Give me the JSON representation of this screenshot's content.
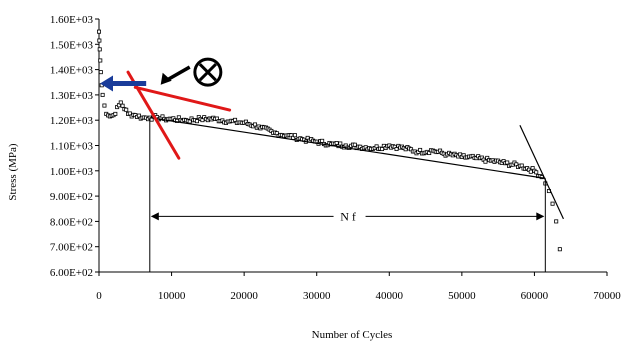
{
  "chart_data": {
    "type": "scatter",
    "xlabel": "Number of Cycles",
    "ylabel": "Stress (MPa)",
    "xlim": [
      0,
      70000
    ],
    "ylim": [
      600,
      1600
    ],
    "x_ticks": [
      0,
      10000,
      20000,
      30000,
      40000,
      50000,
      60000,
      70000
    ],
    "x_tick_labels": [
      "0",
      "10000",
      "20000",
      "30000",
      "40000",
      "50000",
      "60000",
      "70000"
    ],
    "y_ticks": [
      600,
      700,
      800,
      900,
      1000,
      1100,
      1200,
      1300,
      1400,
      1500,
      1600
    ],
    "y_tick_labels": [
      "6.00E+02",
      "7.00E+02",
      "8.00E+02",
      "9.00E+02",
      "1.00E+03",
      "1.10E+03",
      "1.20E+03",
      "1.30E+03",
      "1.40E+03",
      "1.50E+03",
      "1.60E+03"
    ],
    "grid": false,
    "series": [
      {
        "marker": "open-square",
        "color": "#000000",
        "x": [
          0,
          100,
          250,
          500,
          1000,
          1500,
          2000,
          3000,
          4000,
          5000,
          6000,
          7000,
          8000,
          9000,
          10000,
          12000,
          14000,
          16000,
          18000,
          20000,
          22000,
          24000,
          26000,
          28000,
          30000,
          32000,
          34000,
          36000,
          38000,
          40000,
          42000,
          44000,
          46000,
          48000,
          50000,
          52000,
          54000,
          56000,
          58000,
          60000,
          61000,
          61500,
          62000,
          62500,
          63000,
          63500
        ],
        "y": [
          1550,
          1480,
          1390,
          1300,
          1225,
          1215,
          1220,
          1270,
          1225,
          1220,
          1210,
          1210,
          1212,
          1205,
          1205,
          1200,
          1205,
          1205,
          1195,
          1190,
          1175,
          1150,
          1140,
          1125,
          1115,
          1105,
          1100,
          1095,
          1090,
          1100,
          1090,
          1075,
          1080,
          1065,
          1055,
          1050,
          1040,
          1030,
          1020,
          1000,
          975,
          950,
          920,
          870,
          800,
          690
        ]
      }
    ],
    "annotations": {
      "nf_label": "Nf",
      "nf_start_x": 7000,
      "nf_end_x": 61500,
      "nf_y": 820,
      "trend_line": {
        "x": [
          7000,
          61500
        ],
        "y": [
          1210,
          970
        ]
      },
      "failure_line": {
        "x": [
          58000,
          64000
        ],
        "y": [
          1180,
          810
        ]
      },
      "red_line_1": {
        "x": [
          5000,
          18000
        ],
        "y": [
          1330,
          1240
        ]
      },
      "red_line_2": {
        "x": [
          4000,
          11000
        ],
        "y": [
          1390,
          1050
        ]
      },
      "blue_arrow": {
        "x_from": 6500,
        "x_to": 0,
        "y": 1345
      },
      "black_arrow": {
        "x_from": 12500,
        "x_to": 8500,
        "y_from": 1410,
        "y_to": 1340
      },
      "circle_cross_symbol": {
        "x": 15000,
        "y": 1390
      }
    },
    "colors": {
      "red": "#e01818",
      "blue": "#1a3c9a",
      "black": "#000000"
    }
  }
}
